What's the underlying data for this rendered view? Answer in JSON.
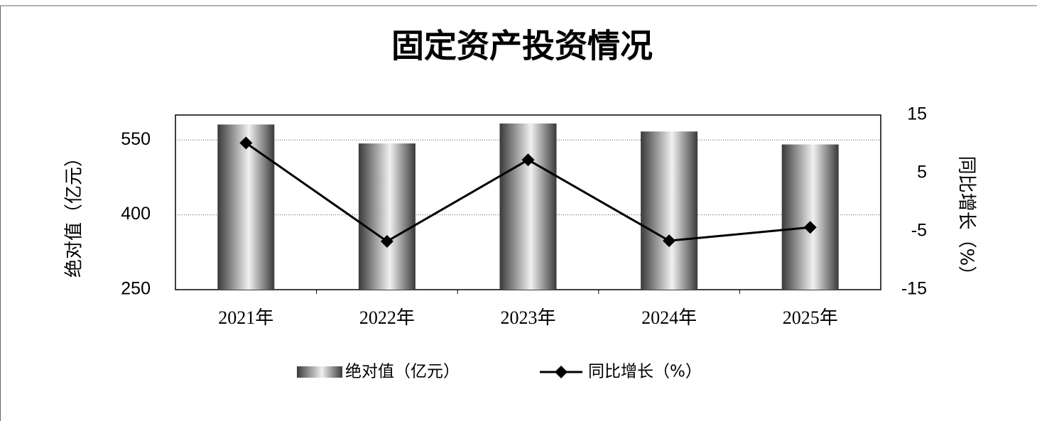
{
  "chart_data": {
    "type": "bar_line",
    "title": "固定资产投资情况",
    "categories": [
      "2021年",
      "2022年",
      "2023年",
      "2024年",
      "2025年"
    ],
    "series": [
      {
        "name": "绝对值（亿元）",
        "type": "bar",
        "color": "#3a3a3a",
        "values": [
          581,
          543,
          583,
          567,
          541
        ]
      },
      {
        "name": "同比增长（%）",
        "type": "line",
        "axis": "y2",
        "color": "#000000",
        "values": [
          10.2,
          -6.7,
          7.3,
          -6.6,
          -4.3
        ]
      }
    ],
    "ylabel": "绝对值（亿元）",
    "y2label": "同比增长（%）",
    "ylim": [
      250,
      600
    ],
    "yticks": [
      250,
      400,
      550
    ],
    "y2lim": [
      -15,
      15
    ],
    "y2ticks": [
      -15,
      -5,
      5,
      15
    ],
    "grid": true,
    "legend": "bottom"
  }
}
